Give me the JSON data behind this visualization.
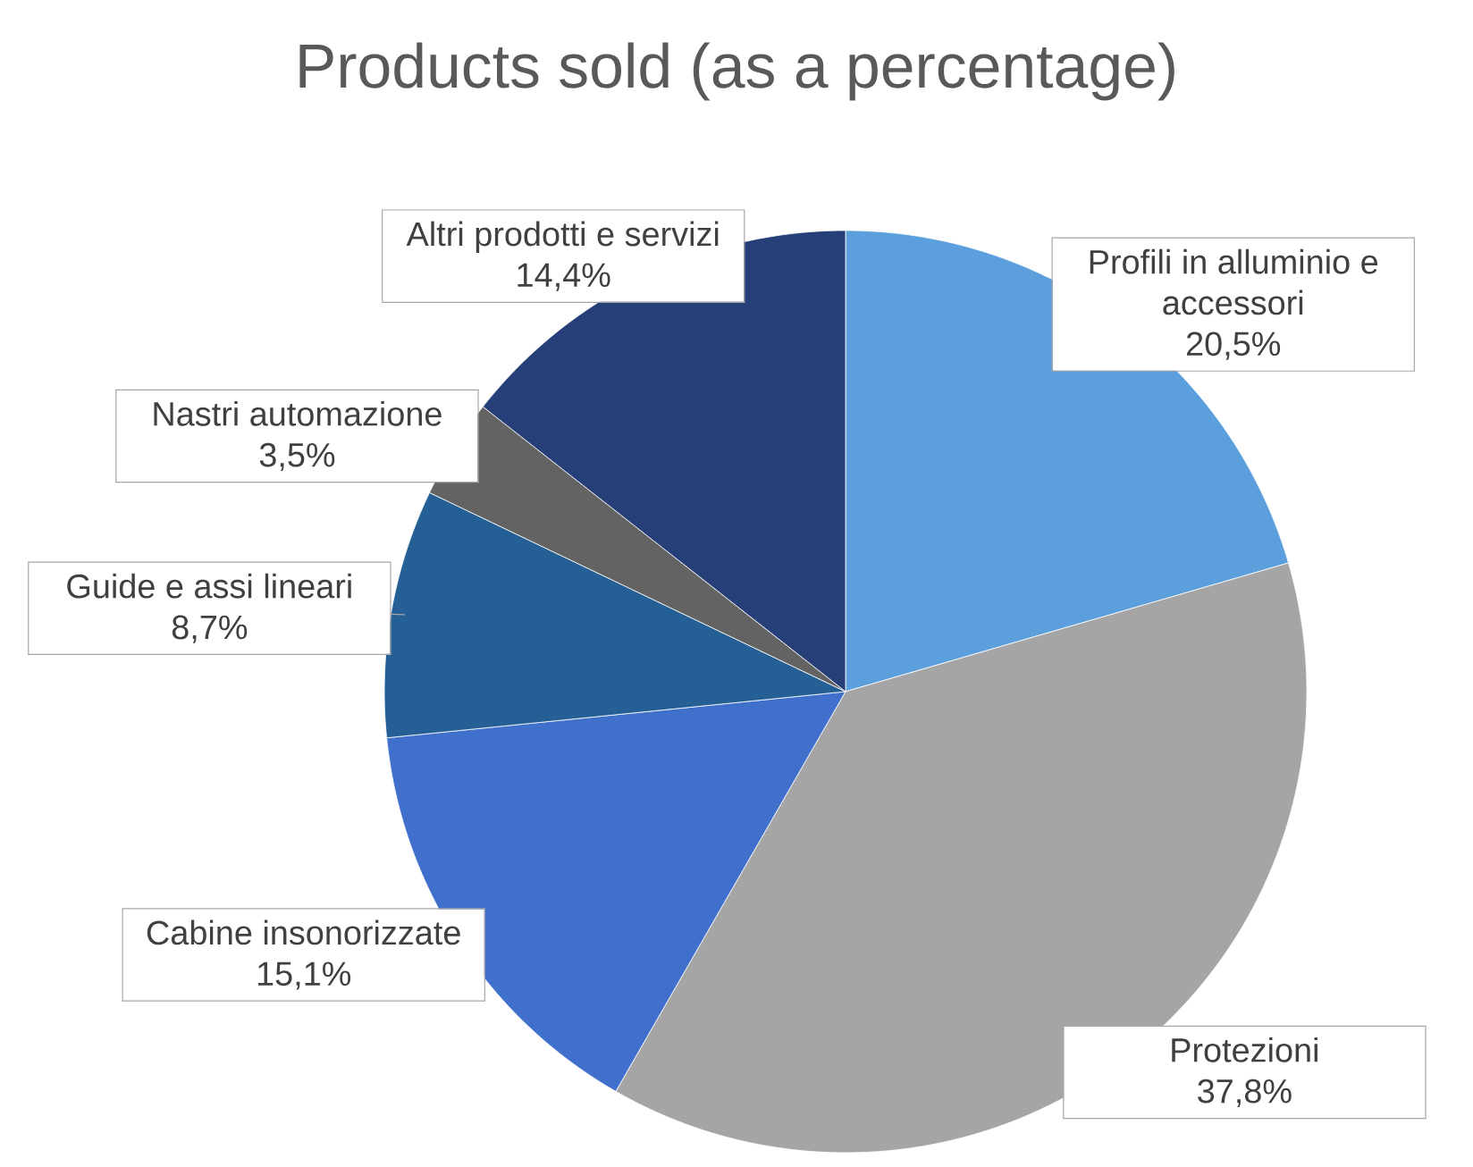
{
  "chart_data": {
    "type": "pie",
    "title": "Products sold (as a percentage)",
    "categories": [
      "Profili in alluminio e accessori",
      "Protezioni",
      "Cabine insonorizzate",
      "Guide e assi lineari",
      "Nastri automazione",
      "Altri prodotti e servizi"
    ],
    "values": [
      20.5,
      37.8,
      15.1,
      8.7,
      3.5,
      14.4
    ],
    "value_labels": [
      "20,5%",
      "37,8%",
      "15,1%",
      "8,7%",
      "3,5%",
      "14,4%"
    ],
    "colors": [
      "#5b9fdc",
      "#a5a5a5",
      "#4170cc",
      "#245f96",
      "#636363",
      "#273f78"
    ]
  }
}
